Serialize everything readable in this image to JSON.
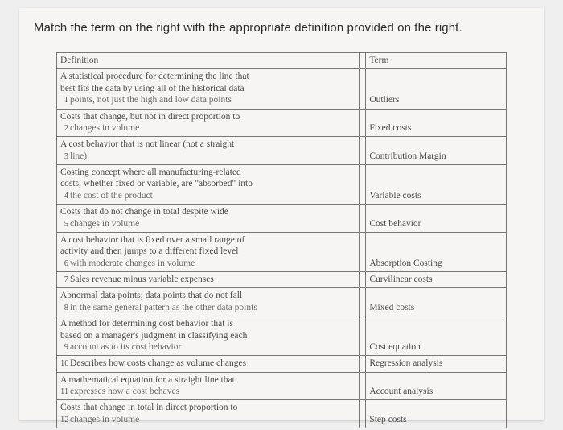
{
  "instruction": "Match the term on the right with the appropriate definition provided on the right.",
  "headers": {
    "definition": "Definition",
    "term": "Term"
  },
  "rows": [
    {
      "n": "1",
      "def_a": "A statistical procedure for determining the line that",
      "def_b": "best fits the data by using all of the historical data",
      "def_c": "points, not just the high and low data points",
      "term": "Outliers"
    },
    {
      "n": "2",
      "def_a": "Costs that change, but not in direct proportion to",
      "def_b": "changes in volume",
      "def_c": "",
      "term": "Fixed costs"
    },
    {
      "n": "3",
      "def_a": "A cost behavior that is not linear (not a straight",
      "def_b": "line)",
      "def_c": "",
      "term": "Contribution Margin"
    },
    {
      "n": "4",
      "def_a": "Costing concept where all manufacturing-related",
      "def_b": "costs, whether fixed or variable, are \"absorbed\" into",
      "def_c": "the cost of the product",
      "term": "Variable costs"
    },
    {
      "n": "5",
      "def_a": "Costs that do not change in total despite wide",
      "def_b": "changes in volume",
      "def_c": "",
      "term": "Cost behavior"
    },
    {
      "n": "6",
      "def_a": "A cost behavior that is fixed over a small range of",
      "def_b": "activity and then jumps to a different fixed level",
      "def_c": "with moderate changes in volume",
      "term": "Absorption Costing"
    },
    {
      "n": "7",
      "def_a": "Sales revenue minus variable expenses",
      "def_b": "",
      "def_c": "",
      "term": "Curvilinear costs"
    },
    {
      "n": "8",
      "def_a": "Abnormal data points; data points that do not fall",
      "def_b": "in the same general pattern as the other data points",
      "def_c": "",
      "term": "Mixed costs"
    },
    {
      "n": "9",
      "def_a": "A method for determining cost behavior that is",
      "def_b": "based on a manager's judgment in classifying each",
      "def_c": "account as to its cost behavior",
      "term": "Cost equation"
    },
    {
      "n": "10",
      "def_a": "Describes how costs change as volume changes",
      "def_b": "",
      "def_c": "",
      "term": "Regression analysis"
    },
    {
      "n": "11",
      "def_a": "A mathematical equation for a straight line that",
      "def_b": "expresses how a cost behaves",
      "def_c": "",
      "term": "Account analysis"
    },
    {
      "n": "12",
      "def_a": "Costs that change in total in direct proportion to",
      "def_b": "changes in volume",
      "def_c": "",
      "term": "Step costs"
    }
  ]
}
